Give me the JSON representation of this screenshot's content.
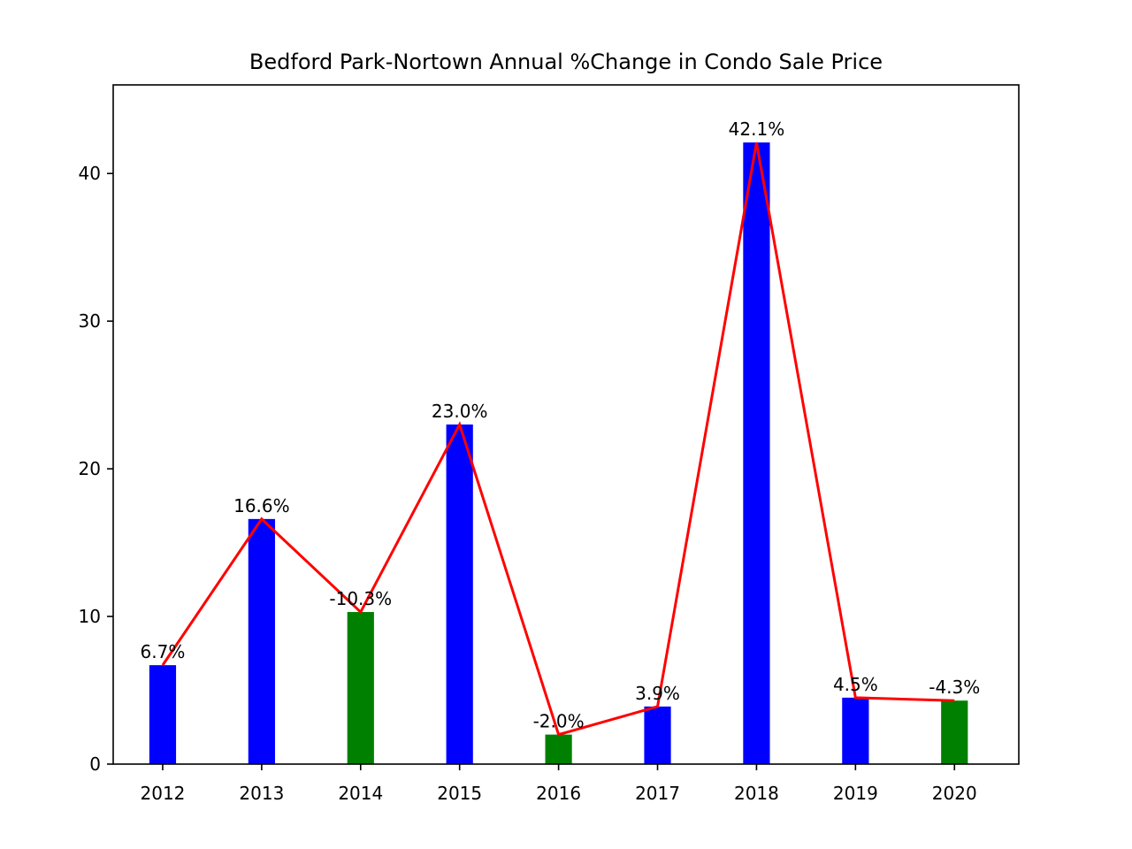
{
  "chart_data": {
    "type": "bar",
    "title": "Bedford Park-Nortown Annual %Change in Condo Sale Price",
    "xlabel": "",
    "ylabel": "",
    "categories": [
      "2012",
      "2013",
      "2014",
      "2015",
      "2016",
      "2017",
      "2018",
      "2019",
      "2020"
    ],
    "values": [
      6.7,
      16.6,
      10.3,
      23.0,
      2.0,
      3.9,
      42.1,
      4.5,
      4.3
    ],
    "labels": [
      "6.7%",
      "16.6%",
      "-10.3%",
      "23.0%",
      "-2.0%",
      "3.9%",
      "42.1%",
      "4.5%",
      "-4.3%"
    ],
    "bar_colors": [
      "#0000ff",
      "#0000ff",
      "#008000",
      "#0000ff",
      "#008000",
      "#0000ff",
      "#0000ff",
      "#0000ff",
      "#008000"
    ],
    "line_color": "#ff0000",
    "overlay": "line through bar tops",
    "ylim": [
      0,
      46
    ],
    "yticks": [
      0,
      10,
      20,
      30,
      40
    ],
    "grid": false,
    "legend": "none"
  }
}
